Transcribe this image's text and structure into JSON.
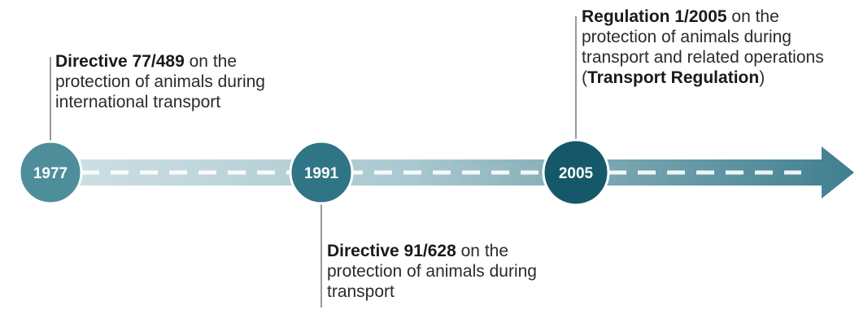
{
  "timeline": {
    "colors": {
      "band_light": "#c9dde2",
      "band_mid": "#8fb4bd",
      "band_dark": "#4d8795",
      "arrow": "#3f7f8f",
      "dash": "#ffffff",
      "connector": "#555555"
    },
    "events": [
      {
        "year": "1977",
        "color": "#4e8e9b",
        "title": "Directive 77/489",
        "desc": " on the protection of animals during international transport",
        "desc_bold": "",
        "desc_end": ""
      },
      {
        "year": "1991",
        "color": "#2f7585",
        "title": "Directive 91/628",
        "desc": " on the protection of animals during transport",
        "desc_bold": "",
        "desc_end": ""
      },
      {
        "year": "2005",
        "color": "#15586a",
        "title": "Regulation 1/2005",
        "desc": " on the protection of animals during transport and related operations (",
        "desc_bold": "Transport Regulation",
        "desc_end": ")"
      }
    ]
  }
}
